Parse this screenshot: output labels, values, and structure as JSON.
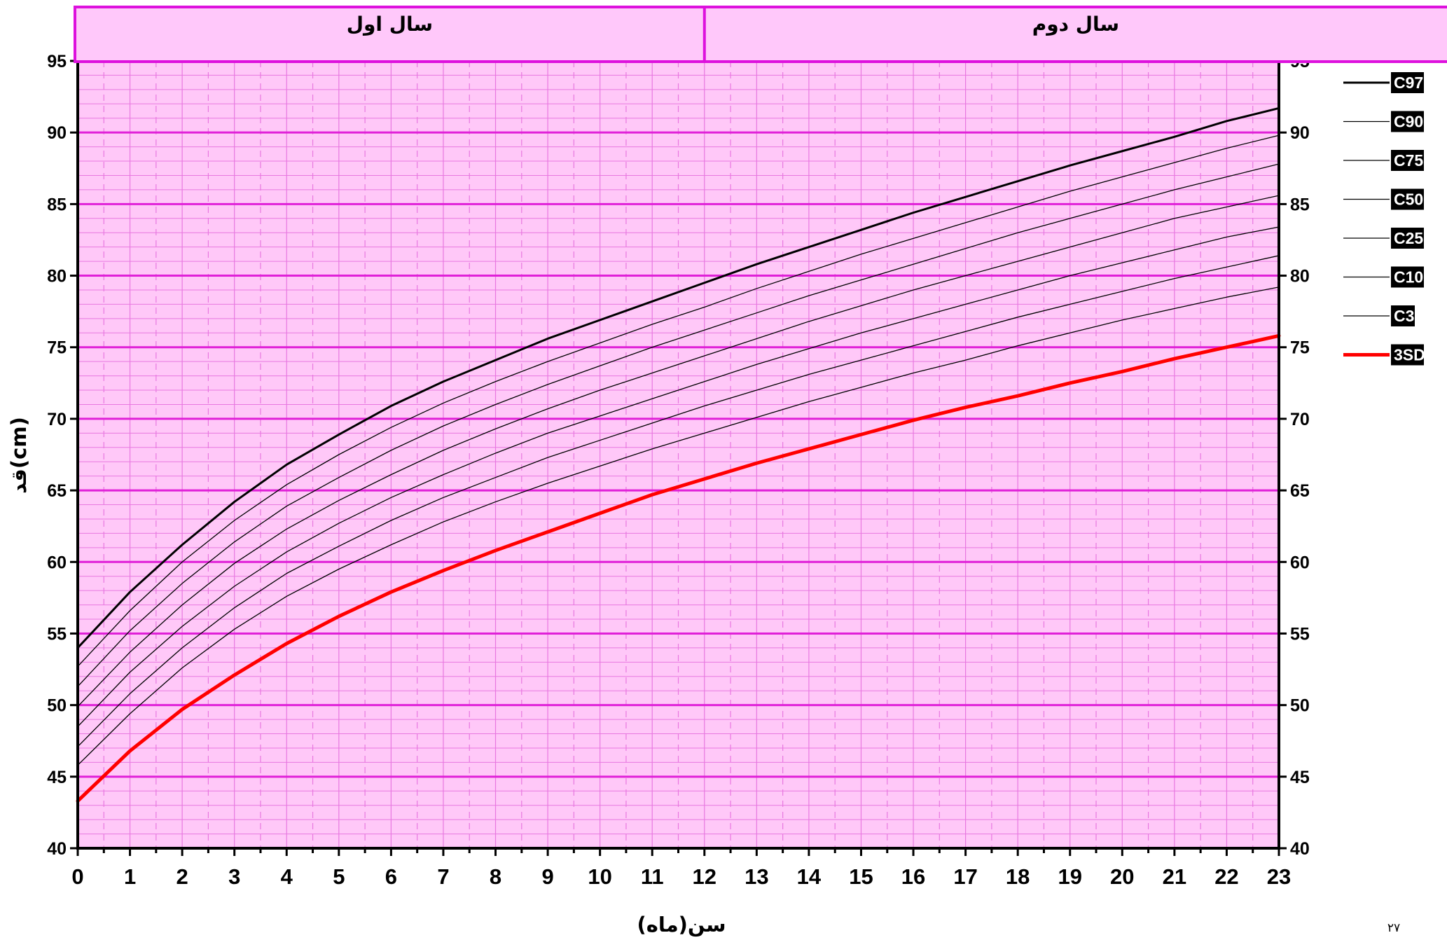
{
  "chart_data": {
    "type": "line",
    "xlabel": "سن(ماه)",
    "ylabel": "قد(cm)",
    "xlim": [
      0,
      23
    ],
    "ylim": [
      40,
      95
    ],
    "x_ticks": [
      0,
      1,
      2,
      3,
      4,
      5,
      6,
      7,
      8,
      9,
      10,
      11,
      12,
      13,
      14,
      15,
      16,
      17,
      18,
      19,
      20,
      21,
      22,
      23
    ],
    "y_ticks": [
      40,
      45,
      50,
      55,
      60,
      65,
      70,
      75,
      80,
      85,
      90,
      95
    ],
    "right_axis": true,
    "grid": true,
    "legend_position": "right",
    "bands": [
      {
        "label": "سال اول",
        "from": 0,
        "to": 12
      },
      {
        "label": "سال دوم",
        "from": 12,
        "to": 23
      }
    ],
    "colors": {
      "plot_background": "#ffc8f8",
      "major_grid": "#e020d8",
      "minor_grid": "#e878e0",
      "header_fill": "#ffc8fa",
      "header_border": "#dd11dd",
      "percentile_line": "#000000",
      "sd_line": "#ff0000",
      "legend_box": "#000000"
    },
    "x": [
      0,
      1,
      2,
      3,
      4,
      5,
      6,
      7,
      8,
      9,
      10,
      11,
      12,
      13,
      14,
      15,
      16,
      17,
      18,
      19,
      20,
      21,
      22,
      23
    ],
    "series": [
      {
        "name": "C97",
        "stroke": "#000000",
        "width": 3,
        "values": [
          54.0,
          57.9,
          61.2,
          64.2,
          66.8,
          68.9,
          70.9,
          72.6,
          74.1,
          75.6,
          76.9,
          78.2,
          79.5,
          80.8,
          82.0,
          83.2,
          84.4,
          85.5,
          86.6,
          87.7,
          88.7,
          89.7,
          90.8,
          91.7
        ]
      },
      {
        "name": "C90",
        "stroke": "#000000",
        "width": 1.3,
        "values": [
          52.7,
          56.6,
          60.0,
          62.9,
          65.4,
          67.5,
          69.4,
          71.1,
          72.6,
          74.0,
          75.3,
          76.6,
          77.8,
          79.1,
          80.3,
          81.5,
          82.6,
          83.7,
          84.8,
          85.9,
          86.9,
          87.9,
          88.9,
          89.8
        ]
      },
      {
        "name": "C75",
        "stroke": "#000000",
        "width": 1.3,
        "values": [
          51.3,
          55.2,
          58.5,
          61.4,
          63.9,
          65.9,
          67.8,
          69.5,
          71.0,
          72.4,
          73.7,
          75.0,
          76.2,
          77.4,
          78.6,
          79.7,
          80.8,
          81.9,
          83.0,
          84.0,
          85.0,
          86.0,
          86.9,
          87.8
        ]
      },
      {
        "name": "C50",
        "stroke": "#000000",
        "width": 1.3,
        "values": [
          49.9,
          53.7,
          57.0,
          59.9,
          62.3,
          64.3,
          66.1,
          67.8,
          69.3,
          70.7,
          72.0,
          73.2,
          74.4,
          75.6,
          76.8,
          77.9,
          79.0,
          80.0,
          81.0,
          82.0,
          83.0,
          84.0,
          84.8,
          85.6
        ]
      },
      {
        "name": "C25",
        "stroke": "#000000",
        "width": 1.3,
        "values": [
          48.5,
          52.3,
          55.5,
          58.3,
          60.7,
          62.7,
          64.5,
          66.1,
          67.6,
          69.0,
          70.2,
          71.4,
          72.6,
          73.8,
          74.9,
          76.0,
          77.0,
          78.0,
          79.0,
          80.0,
          80.9,
          81.8,
          82.7,
          83.4
        ]
      },
      {
        "name": "C10",
        "stroke": "#000000",
        "width": 1.3,
        "values": [
          47.1,
          50.8,
          54.0,
          56.8,
          59.2,
          61.1,
          62.9,
          64.5,
          65.9,
          67.3,
          68.5,
          69.7,
          70.9,
          72.0,
          73.1,
          74.1,
          75.1,
          76.1,
          77.1,
          78.0,
          78.9,
          79.8,
          80.6,
          81.4
        ]
      },
      {
        "name": "C3",
        "stroke": "#000000",
        "width": 1.3,
        "values": [
          45.8,
          49.4,
          52.6,
          55.3,
          57.6,
          59.5,
          61.2,
          62.8,
          64.2,
          65.5,
          66.7,
          67.9,
          69.0,
          70.1,
          71.2,
          72.2,
          73.2,
          74.1,
          75.1,
          76.0,
          76.9,
          77.7,
          78.5,
          79.2
        ]
      },
      {
        "name": "3SD",
        "stroke": "#ff0000",
        "width": 5,
        "values": [
          43.3,
          46.8,
          49.7,
          52.1,
          54.3,
          56.2,
          57.9,
          59.4,
          60.8,
          62.1,
          63.4,
          64.7,
          65.8,
          66.9,
          67.9,
          68.9,
          69.9,
          70.8,
          71.6,
          72.5,
          73.3,
          74.2,
          75.0,
          75.8
        ]
      }
    ],
    "page_number": "۲۷"
  }
}
